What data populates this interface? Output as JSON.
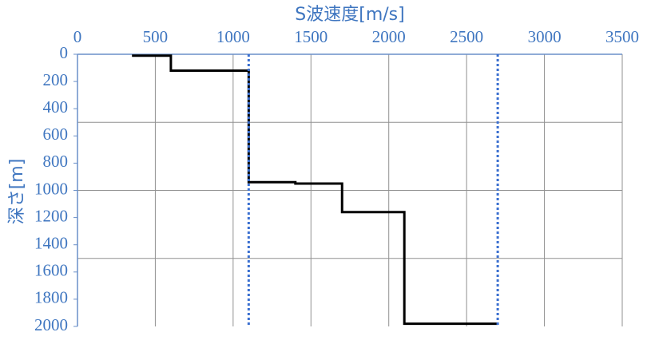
{
  "chart_data": {
    "type": "line",
    "x_label": "S波速度[m/s]",
    "y_label": "深さ[m]",
    "xlim": [
      0,
      3500
    ],
    "xticks": [
      0,
      500,
      1000,
      1500,
      2000,
      2500,
      3000,
      3500
    ],
    "ylim": [
      0,
      2000
    ],
    "yticks": [
      0,
      200,
      400,
      600,
      800,
      1000,
      1200,
      1400,
      1600,
      1800,
      2000
    ],
    "y_inverted": true,
    "x_axis_top": true,
    "y_grid": [
      500,
      1000,
      1500
    ],
    "series": [
      {
        "color": "#000000",
        "dash": false,
        "x": [
          350,
          600,
          600,
          1100,
          1100,
          1400,
          1400,
          1700,
          1700,
          2100,
          2100,
          2700
        ],
        "values": [
          10,
          10,
          120,
          120,
          940,
          940,
          950,
          950,
          1160,
          1160,
          1980,
          1980
        ]
      },
      {
        "color": "#3a6fd0",
        "dash": true,
        "x": [
          1100,
          1100
        ],
        "values": [
          0,
          2000
        ]
      },
      {
        "color": "#3a6fd0",
        "dash": true,
        "x": [
          2700,
          2700
        ],
        "values": [
          0,
          2000
        ]
      }
    ]
  }
}
